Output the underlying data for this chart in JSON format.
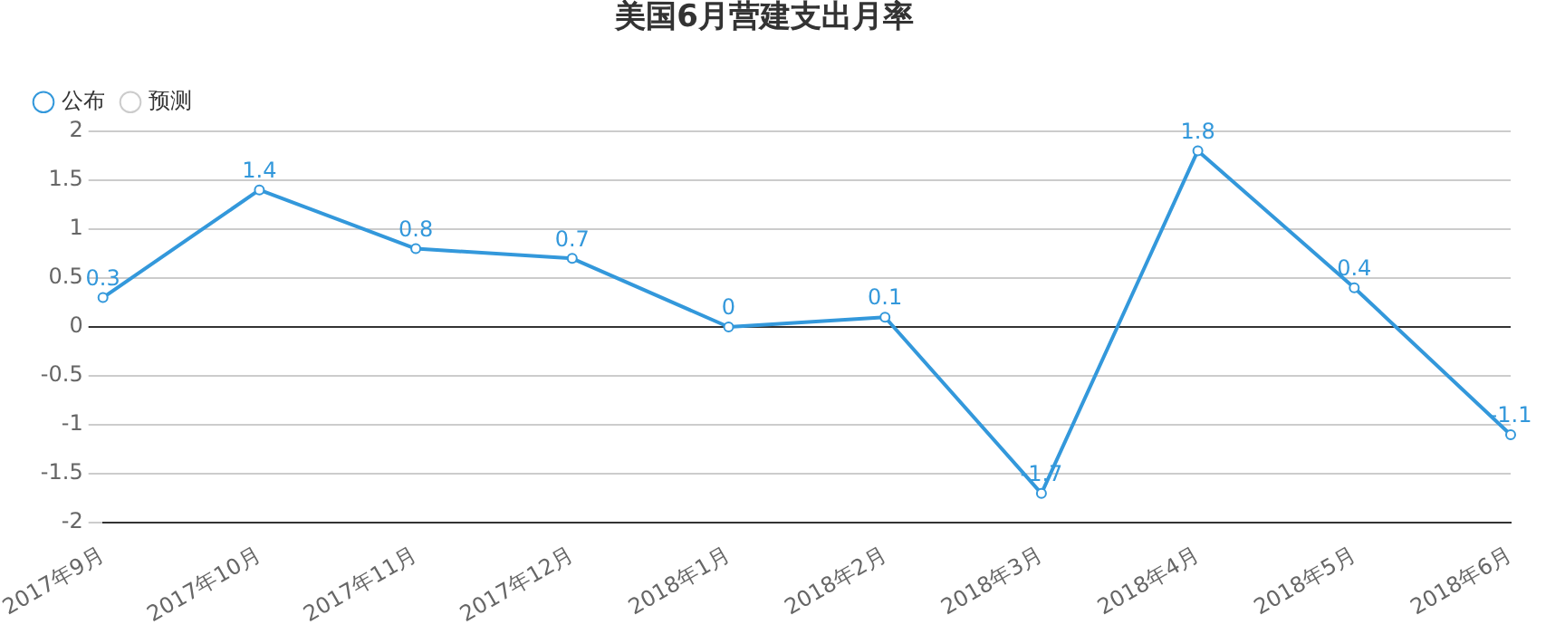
{
  "chart_data": {
    "type": "line",
    "title": "美国6月营建支出月率",
    "categories": [
      "2017年9月",
      "2017年10月",
      "2017年11月",
      "2017年12月",
      "2018年1月",
      "2018年2月",
      "2018年3月",
      "2018年4月",
      "2018年5月",
      "2018年6月"
    ],
    "series": [
      {
        "name": "公布",
        "color": "#3398db",
        "values": [
          0.3,
          1.4,
          0.8,
          0.7,
          0,
          0.1,
          -1.7,
          1.8,
          0.4,
          -1.1
        ]
      },
      {
        "name": "预测",
        "color": "#cccccc",
        "values": [
          null,
          null,
          null,
          null,
          null,
          null,
          null,
          null,
          null,
          null
        ]
      }
    ],
    "ylim": [
      -2,
      2
    ],
    "yticks": [
      -2,
      -1.5,
      -1,
      -0.5,
      0,
      0.5,
      1,
      1.5,
      2
    ],
    "grid": "y",
    "legend": "top left",
    "marker": "circle",
    "line_style": "solid",
    "data_labels": true
  }
}
